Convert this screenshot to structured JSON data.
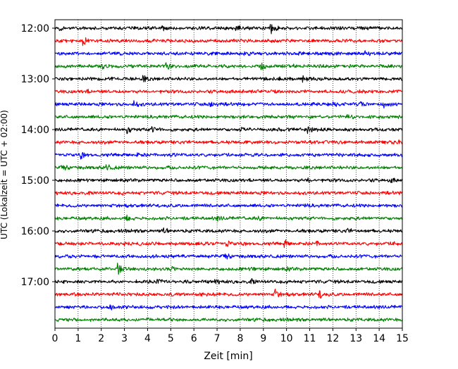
{
  "chart_data": {
    "type": "line",
    "title": "",
    "xlabel": "Zeit  [min]",
    "ylabel": "UTC (Lokalzeit = UTC + 02:00)",
    "xlim": [
      0,
      15
    ],
    "x_ticks": [
      0,
      1,
      2,
      3,
      4,
      5,
      6,
      7,
      8,
      9,
      10,
      11,
      12,
      13,
      14,
      15
    ],
    "x_tick_labels": [
      "0",
      "1",
      "2",
      "3",
      "4",
      "5",
      "6",
      "7",
      "8",
      "9",
      "10",
      "11",
      "12",
      "13",
      "14",
      "15"
    ],
    "y_tick_labels": [
      "12:00",
      "13:00",
      "14:00",
      "15:00",
      "16:00",
      "17:00"
    ],
    "trace_interval_minutes": 15,
    "trace_colors": [
      "#000000",
      "#ff0000",
      "#0000ff",
      "#008000"
    ],
    "grid": "vertical dotted",
    "series": [
      {
        "start": "12:00",
        "color": "#000000",
        "events": [
          [
            0.2,
            0.5
          ],
          [
            4.6,
            0.6
          ],
          [
            7.8,
            1.0
          ],
          [
            9.3,
            1.4
          ],
          [
            12.7,
            0.4
          ]
        ]
      },
      {
        "start": "12:15",
        "color": "#ff0000",
        "events": [
          [
            1.2,
            1.1
          ]
        ]
      },
      {
        "start": "12:30",
        "color": "#0000ff",
        "events": [
          [
            8.2,
            0.7
          ],
          [
            10.5,
            0.6
          ],
          [
            13.4,
            0.5
          ]
        ]
      },
      {
        "start": "12:45",
        "color": "#008000",
        "events": [
          [
            2.0,
            1.2
          ],
          [
            4.8,
            0.8
          ],
          [
            8.9,
            1.4
          ],
          [
            10.3,
            0.5
          ]
        ]
      },
      {
        "start": "13:00",
        "color": "#000000",
        "events": [
          [
            3.8,
            0.8
          ],
          [
            9.7,
            0.6
          ],
          [
            10.7,
            0.8
          ]
        ]
      },
      {
        "start": "13:15",
        "color": "#ff0000",
        "events": [
          [
            1.3,
            0.4
          ]
        ]
      },
      {
        "start": "13:30",
        "color": "#0000ff",
        "events": [
          [
            3.4,
            0.9
          ],
          [
            6.7,
            1.2
          ],
          [
            12.0,
            0.5
          ],
          [
            13.2,
            0.6
          ],
          [
            14.2,
            0.8
          ]
        ]
      },
      {
        "start": "13:45",
        "color": "#008000",
        "events": [
          [
            12.6,
            0.5
          ]
        ]
      },
      {
        "start": "14:00",
        "color": "#000000",
        "events": [
          [
            3.1,
            1.0
          ],
          [
            4.2,
            1.4
          ],
          [
            8.0,
            0.6
          ],
          [
            10.9,
            0.6
          ]
        ]
      },
      {
        "start": "14:15",
        "color": "#ff0000",
        "events": [
          [
            14.8,
            0.4
          ]
        ]
      },
      {
        "start": "14:30",
        "color": "#0000ff",
        "events": [
          [
            1.1,
            0.8
          ],
          [
            3.5,
            0.6
          ],
          [
            5.0,
            0.5
          ]
        ]
      },
      {
        "start": "14:45",
        "color": "#008000",
        "events": [
          [
            0.3,
            0.9
          ],
          [
            2.2,
            1.1
          ]
        ]
      },
      {
        "start": "15:00",
        "color": "#000000",
        "events": [
          [
            10.9,
            0.7
          ],
          [
            14.5,
            0.5
          ]
        ]
      },
      {
        "start": "15:15",
        "color": "#ff0000",
        "events": [
          [
            2.9,
            0.4
          ]
        ]
      },
      {
        "start": "15:30",
        "color": "#0000ff",
        "events": [
          [
            10.7,
            0.4
          ]
        ]
      },
      {
        "start": "15:45",
        "color": "#008000",
        "events": [
          [
            3.1,
            1.1
          ],
          [
            7.0,
            0.6
          ],
          [
            8.7,
            0.8
          ]
        ]
      },
      {
        "start": "16:00",
        "color": "#000000",
        "events": [
          [
            4.7,
            0.7
          ],
          [
            12.6,
            0.5
          ]
        ]
      },
      {
        "start": "16:15",
        "color": "#ff0000",
        "events": [
          [
            7.4,
            1.0
          ],
          [
            9.9,
            1.0
          ],
          [
            11.3,
            0.6
          ],
          [
            14.6,
            0.6
          ]
        ]
      },
      {
        "start": "16:30",
        "color": "#0000ff",
        "events": [
          [
            7.3,
            1.0
          ]
        ]
      },
      {
        "start": "16:45",
        "color": "#008000",
        "events": [
          [
            2.7,
            1.5
          ],
          [
            5.0,
            1.1
          ],
          [
            8.5,
            0.5
          ],
          [
            10.0,
            0.4
          ]
        ]
      },
      {
        "start": "17:00",
        "color": "#000000",
        "events": [
          [
            4.4,
            0.9
          ],
          [
            6.9,
            0.6
          ],
          [
            8.5,
            0.5
          ],
          [
            10.0,
            0.5
          ]
        ]
      },
      {
        "start": "17:15",
        "color": "#ff0000",
        "events": [
          [
            9.5,
            1.4
          ],
          [
            11.4,
            1.2
          ]
        ]
      },
      {
        "start": "17:30",
        "color": "#0000ff",
        "events": [
          [
            2.3,
            1.1
          ]
        ]
      },
      {
        "start": "17:45",
        "color": "#008000",
        "events": [
          [
            3.7,
            0.4
          ]
        ]
      }
    ]
  }
}
